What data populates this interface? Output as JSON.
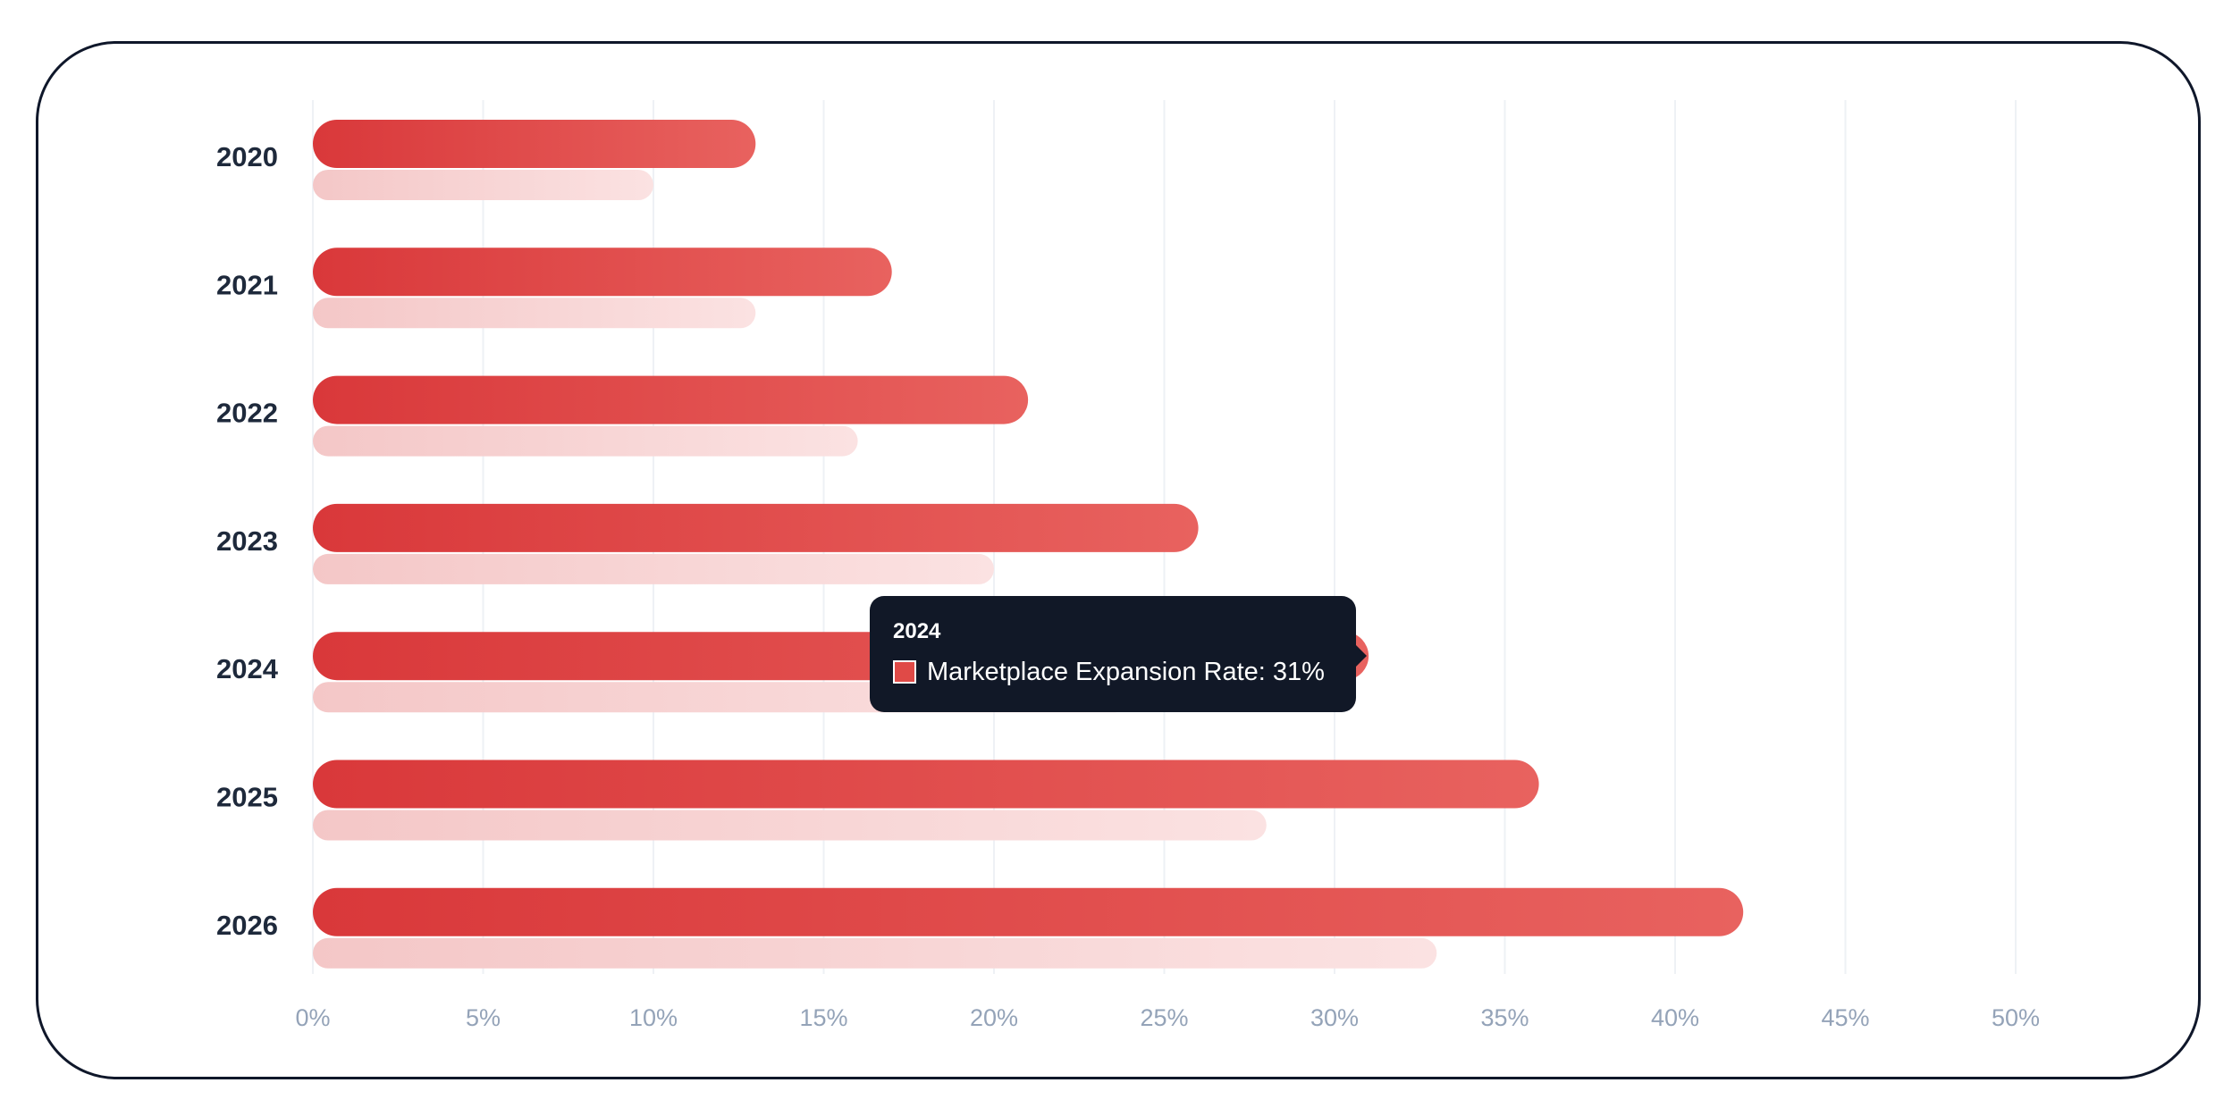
{
  "chart_data": {
    "type": "bar",
    "orientation": "horizontal",
    "categories": [
      "2020",
      "2021",
      "2022",
      "2023",
      "2024",
      "2025",
      "2026"
    ],
    "series": [
      {
        "values": [
          13,
          17,
          21,
          26,
          31,
          36,
          42
        ],
        "color": "#dc3b37"
      },
      {
        "values": [
          10,
          13,
          16,
          20,
          24,
          28,
          33
        ],
        "color": "#f5cccc"
      }
    ],
    "xlim": [
      0,
      50
    ],
    "xticks": [
      "0%",
      "5%",
      "10%",
      "15%",
      "20%",
      "25%",
      "30%",
      "35%",
      "40%",
      "45%",
      "50%"
    ],
    "grid": "vertical",
    "xlabel": "",
    "ylabel": "",
    "title": ""
  },
  "tooltip": {
    "title": "2024",
    "label": "Marketplace Expansion Rate: 31%",
    "swatch_color": "#e04a47"
  }
}
